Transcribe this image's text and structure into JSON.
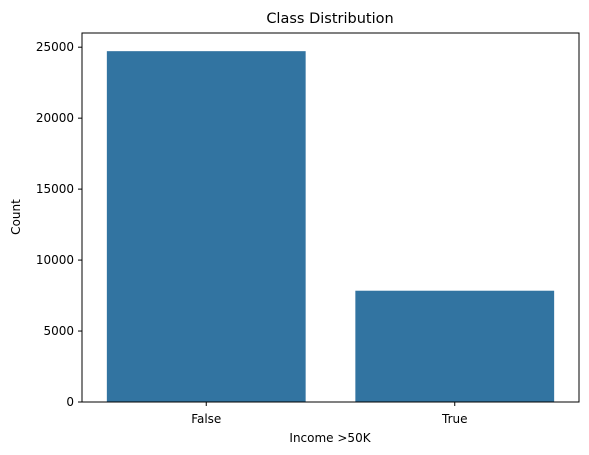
{
  "chart_data": {
    "type": "bar",
    "title": "Class Distribution",
    "xlabel": "Income >50K",
    "ylabel": "Count",
    "categories": [
      "False",
      "True"
    ],
    "values": [
      24720,
      7841
    ],
    "ylim": [
      0,
      26000
    ],
    "yticks": [
      0,
      5000,
      10000,
      15000,
      20000,
      25000
    ],
    "bar_color": "#3274a1",
    "grid": false,
    "legend": "none"
  }
}
